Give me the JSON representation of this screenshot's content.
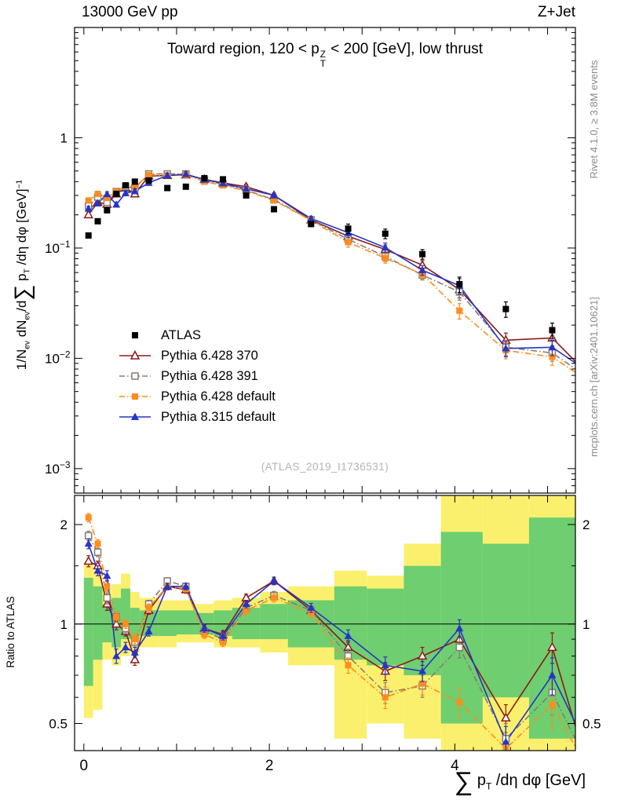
{
  "header": {
    "left": "13000 GeV pp",
    "right": "Z+Jet"
  },
  "side_notes": {
    "rivet": "Rivet 4.1.0, ≥ 3.8M events",
    "mcplots": "mcplots.cern.ch [arXiv:2401.10621]"
  },
  "watermark": "(ATLAS_2019_I1736531)",
  "labels": {
    "title": {
      "p1": "Toward region, 120 < p",
      "sup": "Z",
      "sub": "T",
      "p2": " < 200 [GeV], low thrust"
    },
    "ylabel": {
      "p1": "1/N",
      "s1": "ev",
      "p2": " dN",
      "s2": "ev",
      "p3": "/d",
      "sum": "∑",
      "p4": " p",
      "s3": "T",
      "p5": " /dη dφ  [GeV]",
      "e1": "−1"
    },
    "xlabel": {
      "sum": "∑",
      "p1": " p",
      "s1": "T",
      "p2": " /dη dφ [GeV]"
    },
    "ratio": "Ratio to ATLAS"
  },
  "chart_data": {
    "type": "line",
    "title": "Toward region, 120 < pT^Z < 200 [GeV], low thrust",
    "xlabel": "∑ pT /dη dφ [GeV]",
    "ylabel_top": "1/N_ev dN_ev/d∑ pT /dη dφ [GeV]^-1",
    "ylabel_bottom": "Ratio to ATLAS",
    "xlim": [
      -0.1,
      5.3
    ],
    "ylim_top": [
      0.0006,
      10
    ],
    "ylim_bottom": [
      0.414,
      2.45
    ],
    "x_ticks_labeled": [
      0,
      2,
      4
    ],
    "y_ticks_top_labeled": [
      0.001,
      0.01,
      0.1,
      1
    ],
    "y_ticks_bottom_labeled": [
      0.5,
      1,
      2
    ],
    "x": [
      0.05,
      0.15,
      0.25,
      0.35,
      0.45,
      0.55,
      0.7,
      0.9,
      1.1,
      1.3,
      1.5,
      1.75,
      2.05,
      2.45,
      2.85,
      3.25,
      3.65,
      4.05,
      4.55,
      5.05,
      5.35
    ],
    "series": [
      {
        "name": "ATLAS",
        "color": "#000000",
        "marker": "square-filled",
        "line": "none",
        "y": [
          0.13,
          0.175,
          0.22,
          0.31,
          0.37,
          0.4,
          0.41,
          0.35,
          0.36,
          0.43,
          0.42,
          0.3,
          0.225,
          0.165,
          0.15,
          0.135,
          0.088,
          0.047,
          0.028,
          0.018,
          null
        ]
      },
      {
        "name": "Pythia 6.428 370",
        "color": "#8b1a1a",
        "marker": "triangle-open",
        "line": "solid",
        "y": [
          0.2,
          0.26,
          0.25,
          0.31,
          0.35,
          0.31,
          0.45,
          0.455,
          0.46,
          0.42,
          0.39,
          0.36,
          0.3,
          0.18,
          0.128,
          0.097,
          0.07,
          0.042,
          0.0146,
          0.0153,
          0.0085
        ],
        "ratio": [
          1.55,
          1.5,
          1.15,
          1.0,
          0.95,
          0.78,
          1.1,
          1.3,
          1.27,
          0.97,
          0.93,
          1.2,
          1.35,
          1.1,
          0.85,
          0.72,
          0.8,
          0.9,
          0.52,
          0.85,
          0.44
        ]
      },
      {
        "name": "Pythia 6.428 391",
        "color": "#857d72",
        "marker": "square-open",
        "line": "dashdot",
        "y": [
          0.24,
          0.29,
          0.26,
          0.325,
          0.36,
          0.35,
          0.47,
          0.47,
          0.47,
          0.41,
          0.38,
          0.335,
          0.275,
          0.18,
          0.12,
          0.084,
          0.057,
          0.04,
          0.0126,
          0.0112,
          0.0075
        ],
        "ratio": [
          1.85,
          1.65,
          1.2,
          1.05,
          0.97,
          0.88,
          1.15,
          1.35,
          1.3,
          0.95,
          0.9,
          1.12,
          1.22,
          1.1,
          0.8,
          0.62,
          0.65,
          0.85,
          0.45,
          0.62,
          0.42
        ]
      },
      {
        "name": "Pythia 6.428 default",
        "color": "#ff8c1e",
        "marker": "square-filled",
        "line": "dashdot",
        "y": [
          0.27,
          0.31,
          0.285,
          0.325,
          0.37,
          0.36,
          0.46,
          0.455,
          0.46,
          0.4,
          0.37,
          0.33,
          0.27,
          0.178,
          0.113,
          0.081,
          0.058,
          0.027,
          0.0118,
          0.0103,
          0.007
        ],
        "ratio": [
          2.1,
          1.75,
          1.3,
          1.05,
          1.0,
          0.9,
          1.12,
          1.3,
          1.28,
          0.93,
          0.88,
          1.1,
          1.2,
          1.08,
          0.75,
          0.6,
          0.66,
          0.58,
          0.42,
          0.57,
          0.4
        ]
      },
      {
        "name": "Pythia 8.315 default",
        "color": "#2535c4",
        "marker": "triangle-filled",
        "line": "solid",
        "y": [
          0.2275,
          0.254,
          0.308,
          0.248,
          0.3145,
          0.328,
          0.39,
          0.455,
          0.468,
          0.417,
          0.386,
          0.345,
          0.3,
          0.185,
          0.138,
          0.101,
          0.063,
          0.0456,
          0.0123,
          0.0126,
          0.0085
        ],
        "ratio": [
          1.75,
          1.45,
          1.4,
          0.8,
          0.85,
          0.82,
          0.95,
          1.3,
          1.3,
          0.97,
          0.92,
          1.15,
          1.35,
          1.12,
          0.92,
          0.75,
          0.72,
          0.97,
          0.44,
          0.7,
          0.47
        ]
      }
    ],
    "ratio_err": [
      0.06,
      0.05,
      0.05,
      0.04,
      0.03,
      0.03,
      0.03,
      0.03,
      0.03,
      0.025,
      0.025,
      0.03,
      0.035,
      0.035,
      0.04,
      0.045,
      0.05,
      0.06,
      0.05,
      0.09,
      0.06
    ],
    "bands": {
      "yellow_color": "#fbf06d",
      "green_color": "#6fce6f",
      "bins": [
        {
          "x0": 0.0,
          "x1": 0.1,
          "yellow": [
            0.52,
            1.52
          ],
          "green": [
            0.65,
            1.38
          ]
        },
        {
          "x0": 0.1,
          "x1": 0.2,
          "yellow": [
            0.55,
            1.45
          ],
          "green": [
            0.78,
            1.3
          ]
        },
        {
          "x0": 0.2,
          "x1": 0.3,
          "yellow": [
            0.78,
            1.28
          ],
          "green": [
            0.88,
            1.15
          ]
        },
        {
          "x0": 0.3,
          "x1": 0.4,
          "yellow": [
            0.75,
            1.32
          ],
          "green": [
            0.85,
            1.2
          ]
        },
        {
          "x0": 0.4,
          "x1": 0.5,
          "yellow": [
            0.8,
            1.42
          ],
          "green": [
            0.9,
            1.28
          ]
        },
        {
          "x0": 0.5,
          "x1": 0.6,
          "yellow": [
            0.82,
            1.25
          ],
          "green": [
            0.9,
            1.12
          ]
        },
        {
          "x0": 0.6,
          "x1": 0.8,
          "yellow": [
            0.85,
            1.2
          ],
          "green": [
            0.92,
            1.1
          ]
        },
        {
          "x0": 0.8,
          "x1": 1.0,
          "yellow": [
            0.85,
            1.18
          ],
          "green": [
            0.92,
            1.1
          ]
        },
        {
          "x0": 1.0,
          "x1": 1.2,
          "yellow": [
            0.88,
            1.18
          ],
          "green": [
            0.93,
            1.1
          ]
        },
        {
          "x0": 1.2,
          "x1": 1.4,
          "yellow": [
            0.88,
            1.15
          ],
          "green": [
            0.93,
            1.08
          ]
        },
        {
          "x0": 1.4,
          "x1": 1.6,
          "yellow": [
            0.85,
            1.18
          ],
          "green": [
            0.92,
            1.1
          ]
        },
        {
          "x0": 1.6,
          "x1": 1.9,
          "yellow": [
            0.85,
            1.2
          ],
          "green": [
            0.9,
            1.12
          ]
        },
        {
          "x0": 1.9,
          "x1": 2.2,
          "yellow": [
            0.82,
            1.25
          ],
          "green": [
            0.9,
            1.15
          ]
        },
        {
          "x0": 2.2,
          "x1": 2.7,
          "yellow": [
            0.75,
            1.3
          ],
          "green": [
            0.85,
            1.18
          ]
        },
        {
          "x0": 2.7,
          "x1": 3.05,
          "yellow": [
            0.45,
            1.45
          ],
          "green": [
            0.78,
            1.3
          ]
        },
        {
          "x0": 3.05,
          "x1": 3.45,
          "yellow": [
            0.5,
            1.4
          ],
          "green": [
            0.75,
            1.28
          ]
        },
        {
          "x0": 3.45,
          "x1": 3.85,
          "yellow": [
            0.45,
            1.75
          ],
          "green": [
            0.7,
            1.5
          ]
        },
        {
          "x0": 3.85,
          "x1": 4.3,
          "yellow": [
            0.35,
            2.45
          ],
          "green": [
            0.5,
            1.9
          ]
        },
        {
          "x0": 4.3,
          "x1": 4.8,
          "yellow": [
            0.4,
            2.45
          ],
          "green": [
            0.6,
            1.75
          ]
        },
        {
          "x0": 4.8,
          "x1": 5.3,
          "yellow": [
            0.38,
            2.45
          ],
          "green": [
            0.45,
            2.1
          ]
        }
      ]
    }
  }
}
